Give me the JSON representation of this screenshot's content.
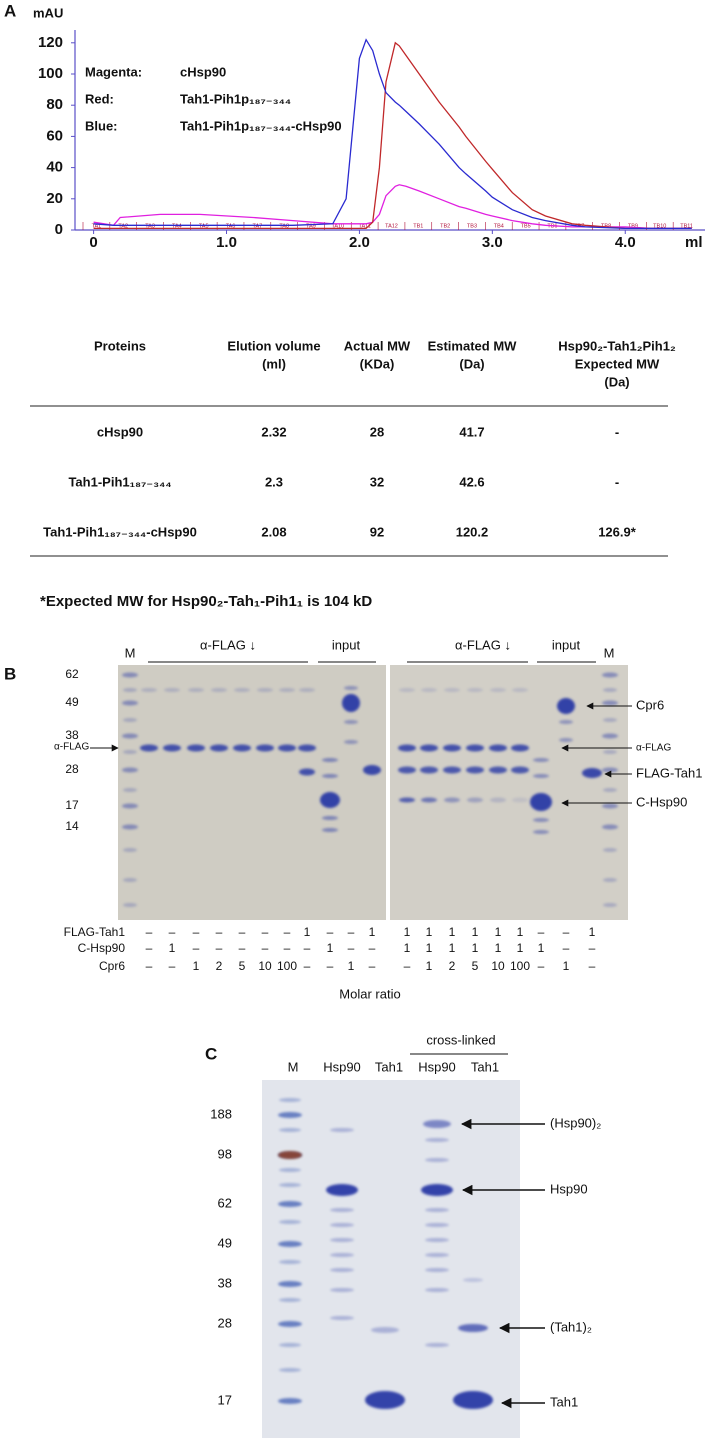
{
  "chart_data": {
    "type": "line",
    "panel_label": "A",
    "ylabel": "mAU",
    "xlabel": "ml",
    "xlim": [
      -0.14,
      4.6
    ],
    "ylim": [
      0,
      125
    ],
    "xticks": [
      0,
      {
        "value": 1,
        "label": "1.0"
      },
      {
        "value": 2,
        "label": "2.0"
      },
      {
        "value": 3,
        "label": "3.0"
      },
      {
        "value": 4,
        "label": "4.0"
      }
    ],
    "yticks": [
      0,
      20,
      40,
      60,
      80,
      100,
      120
    ],
    "fractions": [
      "TA1",
      "TA2",
      "TA3",
      "TA4",
      "TA5",
      "TA6",
      "TA7",
      "TA8",
      "TA9",
      "TA10",
      "TA11",
      "TA12",
      "TB1",
      "TB2",
      "TB3",
      "TB4",
      "TB5",
      "TB6",
      "TB7",
      "TB8",
      "TB9",
      "TB10",
      "TB11"
    ],
    "x": [
      0,
      0.15,
      0.2,
      0.5,
      0.8,
      1.2,
      1.5,
      1.8,
      1.9,
      2.0,
      2.05,
      2.1,
      2.15,
      2.2,
      2.27,
      2.3,
      2.35,
      2.45,
      2.6,
      2.75,
      2.8,
      2.95,
      3.0,
      3.15,
      3.3,
      3.4,
      3.6,
      3.7,
      4.0,
      4.2,
      4.5
    ],
    "series": [
      {
        "name": "cHsp90",
        "color_label": "Magenta:",
        "color": "#e020e0",
        "values": [
          5,
          3,
          8,
          10,
          10,
          8,
          6,
          4,
          4,
          4,
          4,
          5,
          10,
          22,
          28,
          29,
          28,
          25,
          20,
          15,
          14,
          10,
          9,
          6,
          4,
          3,
          2,
          2,
          2,
          1,
          1
        ]
      },
      {
        "name": "Tah1-Pih1p₁₈₇₋₃₄₄",
        "color_label": "Red:",
        "color": "#c0282a",
        "values": [
          1,
          1,
          1,
          1,
          1,
          1,
          1,
          1,
          1,
          1,
          1,
          5,
          40,
          95,
          120,
          118,
          112,
          100,
          82,
          66,
          60,
          44,
          39,
          24,
          13,
          9,
          4,
          3,
          1,
          1,
          1
        ]
      },
      {
        "name": "Tah1-Pih1p₁₈₇₋₃₄₄-cHsp90",
        "color_label": "Blue:",
        "color": "#2a2ad0",
        "values": [
          4,
          3,
          3,
          3,
          3,
          3,
          3,
          4,
          20,
          110,
          122,
          115,
          100,
          88,
          82,
          80,
          76,
          68,
          55,
          40,
          36,
          25,
          21,
          13,
          8,
          6,
          3,
          2,
          1,
          1,
          1
        ]
      }
    ]
  },
  "table": {
    "header": [
      [
        "Proteins"
      ],
      [
        "Elution volume",
        "(ml)"
      ],
      [
        "Actual MW",
        "(KDa)"
      ],
      [
        "Estimated MW",
        "(Da)"
      ],
      [
        "Hsp90₂-Tah1₂Pih1₂",
        "Expected MW",
        "(Da)"
      ]
    ],
    "rows": [
      [
        "cHsp90",
        "2.32",
        "28",
        "41.7",
        "-"
      ],
      [
        "Tah1-Pih1₁₈₇₋₃₄₄",
        "2.3",
        "32",
        "42.6",
        "-"
      ],
      [
        "Tah1-Pih1₁₈₇₋₃₄₄-cHsp90",
        "2.08",
        "92",
        "120.2",
        "126.9*"
      ]
    ]
  },
  "footnote": "*Expected MW for Hsp90₂-Tah₁-Pih1₁ is 104 kD",
  "panel_b": {
    "label": "B",
    "left": {
      "marker": "M",
      "ip": "α-FLAG ↓",
      "input": "input"
    },
    "right": {
      "marker": "M",
      "ip": "α-FLAG ↓",
      "input": "input"
    },
    "markers": [
      62,
      49,
      38,
      28,
      17,
      14
    ],
    "left_band_label": "α-FLAG",
    "band_labels": [
      "Cpr6",
      "α-FLAG",
      "FLAG-Tah1",
      "C-Hsp90"
    ],
    "rows": [
      {
        "label": "FLAG-Tah1",
        "left": [
          "–",
          "–",
          "–",
          "–",
          "–",
          "–",
          "–",
          "1",
          "–",
          "–",
          "1"
        ],
        "right": [
          "1",
          "1",
          "1",
          "1",
          "1",
          "1",
          "–",
          "–",
          "1"
        ]
      },
      {
        "label": "C-Hsp90",
        "left": [
          "–",
          "1",
          "–",
          "–",
          "–",
          "–",
          "–",
          "–",
          "1",
          "–",
          "–"
        ],
        "right": [
          "1",
          "1",
          "1",
          "1",
          "1",
          "1",
          "1",
          "–",
          "–"
        ]
      },
      {
        "label": "Cpr6",
        "left": [
          "–",
          "–",
          "1",
          "2",
          "5",
          "10",
          "100",
          "–",
          "–",
          "1",
          "–"
        ],
        "right": [
          "–",
          "1",
          "2",
          "5",
          "10",
          "100",
          "–",
          "1",
          "–"
        ]
      }
    ],
    "xlabel": "Molar ratio"
  },
  "panel_c": {
    "label": "C",
    "lanes": [
      "M",
      "Hsp90",
      "Tah1",
      "Hsp90",
      "Tah1"
    ],
    "group_label": "cross-linked",
    "markers": [
      188,
      98,
      62,
      49,
      38,
      28,
      17
    ],
    "band_labels": [
      "(Hsp90)₂",
      "Hsp90",
      "(Tah1)₂",
      "Tah1"
    ]
  }
}
